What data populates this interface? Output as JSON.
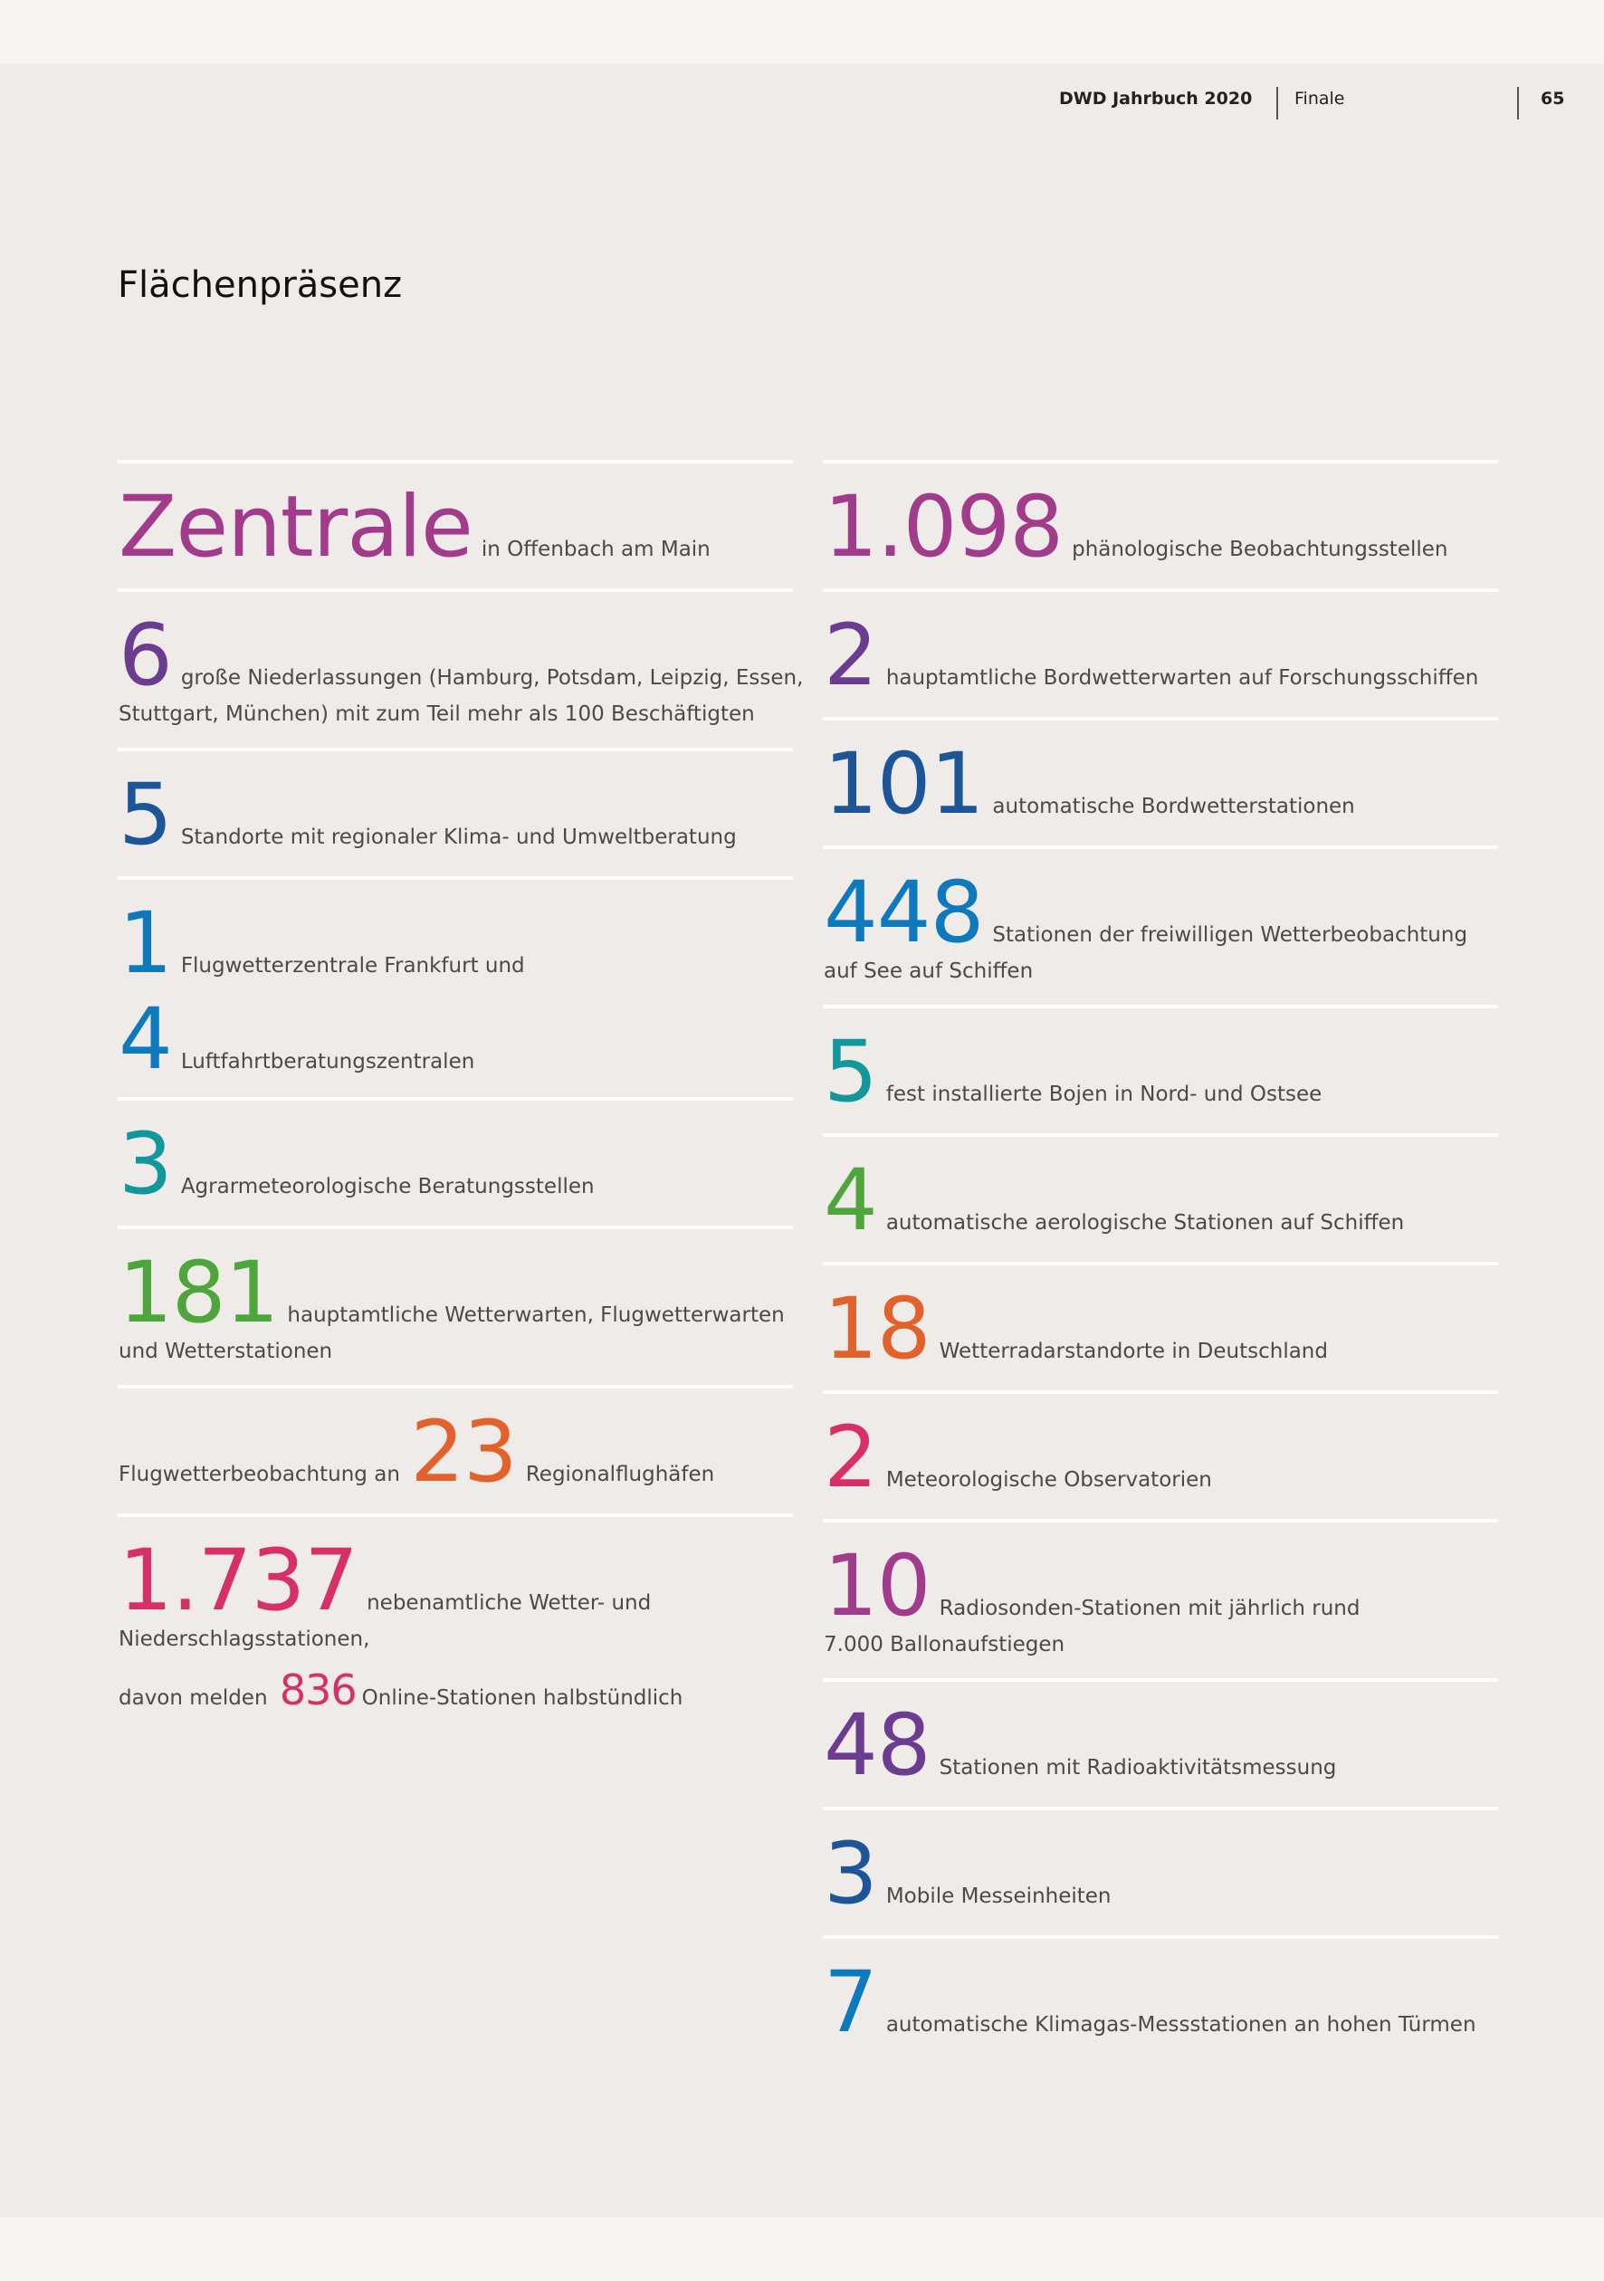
{
  "header": {
    "book": "DWD Jahrbuch 2020",
    "section": "Finale",
    "page": "65"
  },
  "title": "Flächenpräsenz",
  "colors": {
    "magenta": "#a23b8c",
    "purple": "#6b3c8f",
    "darkblue": "#1d5698",
    "blue": "#0e79bd",
    "teal": "#12979b",
    "green": "#4da53c",
    "orange": "#e2622b",
    "pink": "#d72f6a"
  },
  "left": {
    "zentrale": {
      "num": "Zentrale",
      "text": "in Offenbach am Main"
    },
    "niederlassungen": {
      "num": "6",
      "text1": "große Niederlassungen (Hamburg, Potsdam, Leipzig, Essen,",
      "text2": "Stuttgart, München) mit zum Teil mehr als 100 Beschäftigten"
    },
    "standorte": {
      "num": "5",
      "text": "Standorte mit regionaler Klima- und Umweltberatung"
    },
    "flugwetterzentrale": {
      "num": "1",
      "text": "Flugwetterzentrale Frankfurt und"
    },
    "luftfahrt": {
      "num": "4",
      "text": "Luftfahrtberatungszentralen"
    },
    "agrar": {
      "num": "3",
      "text": "Agrarmeteorologische Beratungsstellen"
    },
    "wetterwarten": {
      "num": "181",
      "text1": "hauptamtliche Wetterwarten, Flugwetterwarten",
      "text2": "und Wetterstationen"
    },
    "regionalflughaefen": {
      "pre": "Flugwetterbeobachtung an",
      "num": "23",
      "text": "Regionalflughäfen"
    },
    "nebenamtlich": {
      "num": "1.737",
      "text1": "nebenamtliche Wetter- und",
      "text2": "Niederschlagsstationen,",
      "pre2": "davon melden",
      "num2": "836",
      "text3": "Online-Stationen halbstündlich"
    }
  },
  "right": {
    "phaeno": {
      "num": "1.098",
      "text": "phänologische Beobachtungsstellen"
    },
    "bordwetterwarten": {
      "num": "2",
      "text": "hauptamtliche Bordwetterwarten auf Forschungsschiffen"
    },
    "bordwetterstationen": {
      "num": "101",
      "text": "automatische Bordwetterstationen"
    },
    "freiwillig": {
      "num": "448",
      "text1": "Stationen der freiwilligen Wetterbeobachtung",
      "text2": "auf See auf Schiffen"
    },
    "bojen": {
      "num": "5",
      "text": "fest installierte Bojen in Nord- und Ostsee"
    },
    "aerologisch": {
      "num": "4",
      "text": "automatische aerologische Stationen auf Schiffen"
    },
    "radar": {
      "num": "18",
      "text": "Wetterradarstandorte in Deutschland"
    },
    "observatorien": {
      "num": "2",
      "text": "Meteorologische Observatorien"
    },
    "radiosonden": {
      "num": "10",
      "text1": "Radiosonden-Stationen mit jährlich rund",
      "text2": "7.000 Ballonaufstiegen"
    },
    "radioaktiv": {
      "num": "48",
      "text": "Stationen mit Radioaktivitätsmessung"
    },
    "mobil": {
      "num": "3",
      "text": "Mobile Messeinheiten"
    },
    "klimagas": {
      "num": "7",
      "text": "automatische Klimagas-Messstationen an hohen Türmen"
    }
  }
}
